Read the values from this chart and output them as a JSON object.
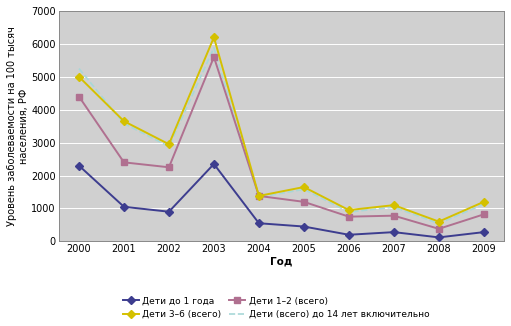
{
  "years": [
    2000,
    2001,
    2002,
    2003,
    2004,
    2005,
    2006,
    2007,
    2008,
    2009
  ],
  "series_order": [
    "Дети до 1 года",
    "Дети 1–2 (всего)",
    "Дети 3–6 (всего)",
    "Дети (всего) до 14 лет включительно"
  ],
  "series": {
    "Дети до 1 года": {
      "values": [
        2300,
        1050,
        900,
        2350,
        550,
        450,
        200,
        280,
        120,
        280
      ],
      "color": "#3d3d8f",
      "marker": "D",
      "markersize": 4,
      "linewidth": 1.4,
      "linestyle": "-",
      "zorder": 4
    },
    "Дети 1–2 (всего)": {
      "values": [
        4400,
        2400,
        2250,
        5600,
        1380,
        1200,
        750,
        780,
        380,
        820
      ],
      "color": "#b07090",
      "marker": "s",
      "markersize": 4,
      "linewidth": 1.4,
      "linestyle": "-",
      "zorder": 3
    },
    "Дети 3–6 (всего)": {
      "values": [
        5000,
        3650,
        2950,
        6200,
        1380,
        1650,
        950,
        1100,
        600,
        1200
      ],
      "color": "#d4c000",
      "marker": "D",
      "markersize": 4,
      "linewidth": 1.4,
      "linestyle": "-",
      "zorder": 3
    },
    "Дети (всего) до 14 лет включительно": {
      "values": [
        5250,
        3580,
        2880,
        5880,
        1340,
        1580,
        890,
        1040,
        540,
        1130
      ],
      "color": "#a8d8d8",
      "marker": null,
      "markersize": 0,
      "linewidth": 1.2,
      "linestyle": "--",
      "zorder": 2
    }
  },
  "legend_order": [
    "Дети до 1 года",
    "Дети 3–6 (всего)",
    "Дети 1–2 (всего)",
    "Дети (всего) до 14 лет включительно"
  ],
  "ylabel": "Уровень заболеваемости на 100 тысяч\nнаселения, РФ",
  "xlabel": "Год",
  "ylim": [
    0,
    7000
  ],
  "yticks": [
    0,
    1000,
    2000,
    3000,
    4000,
    5000,
    6000,
    7000
  ],
  "plot_bg_color": "#d0d0d0",
  "fig_bg_color": "#ffffff",
  "label_fontsize": 7.5,
  "tick_fontsize": 7,
  "legend_fontsize": 6.5
}
